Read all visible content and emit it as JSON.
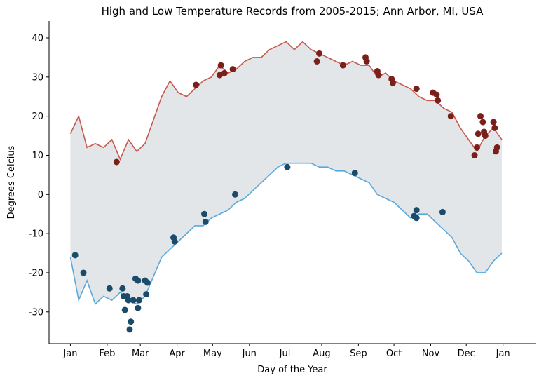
{
  "chart_data": {
    "type": "line",
    "title": "High and Low Temperature Records from 2005-2015; Ann Arbor, MI, USA",
    "x_label": "Day of the Year",
    "y_label": "Degrees Celcius",
    "xlim": [
      -17,
      394
    ],
    "ylim": [
      -38.1,
      44.3
    ],
    "xticks": [
      {
        "value": 1,
        "label": "Jan"
      },
      {
        "value": 32,
        "label": "Feb"
      },
      {
        "value": 60,
        "label": "Mar"
      },
      {
        "value": 91,
        "label": "Apr"
      },
      {
        "value": 121,
        "label": "May"
      },
      {
        "value": 152,
        "label": "Jun"
      },
      {
        "value": 182,
        "label": "Jul"
      },
      {
        "value": 213,
        "label": "Aug"
      },
      {
        "value": 244,
        "label": "Sep"
      },
      {
        "value": 274,
        "label": "Oct"
      },
      {
        "value": 305,
        "label": "Nov"
      },
      {
        "value": 335,
        "label": "Dec"
      },
      {
        "value": 366,
        "label": "Jan"
      }
    ],
    "yticks": [
      -30,
      -20,
      -10,
      0,
      10,
      20,
      30,
      40
    ],
    "fill_between": {
      "series": [
        0,
        1
      ],
      "color": "#e3e6e8"
    },
    "series": [
      {
        "style": "line",
        "color": "#c8584d",
        "x": [
          1,
          8,
          15,
          22,
          29,
          36,
          43,
          50,
          57,
          64,
          71,
          78,
          85,
          92,
          99,
          106,
          113,
          120,
          127,
          134,
          141,
          148,
          155,
          162,
          169,
          176,
          183,
          190,
          197,
          204,
          211,
          218,
          225,
          232,
          239,
          246,
          253,
          260,
          267,
          274,
          281,
          288,
          295,
          302,
          309,
          316,
          323,
          330,
          337,
          344,
          351,
          358,
          365
        ],
        "values": [
          15.5,
          20,
          12,
          13,
          12,
          14,
          9,
          14,
          11,
          13,
          19,
          25,
          29,
          26,
          25,
          27,
          29,
          30,
          33,
          31,
          32,
          34,
          35,
          35,
          37,
          38,
          39,
          37,
          39,
          37,
          36,
          35,
          34,
          33,
          34,
          33,
          33,
          30,
          31,
          29,
          28,
          27,
          25,
          24,
          24,
          22,
          21,
          17,
          14,
          11,
          15,
          17,
          14
        ]
      },
      {
        "style": "line",
        "color": "#5aa9dd",
        "x": [
          1,
          8,
          15,
          22,
          29,
          36,
          43,
          50,
          57,
          64,
          71,
          78,
          85,
          92,
          99,
          106,
          113,
          120,
          127,
          134,
          141,
          148,
          155,
          162,
          169,
          176,
          183,
          190,
          197,
          204,
          211,
          218,
          225,
          232,
          239,
          246,
          253,
          260,
          267,
          274,
          281,
          288,
          295,
          302,
          309,
          316,
          323,
          330,
          337,
          344,
          351,
          358,
          365
        ],
        "values": [
          -16,
          -27,
          -22,
          -28,
          -26,
          -27,
          -25,
          -27,
          -28,
          -26,
          -21,
          -16,
          -14,
          -12,
          -10,
          -8,
          -8,
          -6,
          -5,
          -4,
          -2,
          -1,
          1,
          3,
          5,
          7,
          8,
          8,
          8,
          8,
          7,
          7,
          6,
          6,
          5,
          4,
          3,
          0,
          -1,
          -2,
          -4,
          -6,
          -5,
          -5,
          -7,
          -9,
          -11,
          -15,
          -17,
          -20,
          -20,
          -17,
          -15
        ]
      },
      {
        "style": "scatter",
        "color": "#7a1f1a",
        "x": [
          40,
          107,
          128,
          127,
          131,
          138,
          209,
          211,
          231,
          250,
          251,
          260,
          261,
          272,
          273,
          293,
          307,
          310,
          311,
          322,
          342,
          344,
          345,
          347,
          349,
          350,
          351,
          358,
          359,
          360,
          361
        ],
        "values": [
          8.3,
          28,
          33,
          30.5,
          31,
          32,
          34,
          36,
          33,
          35,
          34,
          31.5,
          30.5,
          29.5,
          28.5,
          27,
          26,
          25.5,
          24,
          20,
          10,
          12,
          15.5,
          20,
          18.5,
          16,
          15,
          18.5,
          17,
          11,
          12
        ]
      },
      {
        "style": "scatter",
        "color": "#1b4b6b",
        "x": [
          5,
          12,
          34,
          45,
          46,
          47,
          49,
          50,
          51,
          52,
          54,
          56,
          58,
          58,
          59,
          64,
          65,
          66,
          88,
          89,
          114,
          115,
          140,
          184,
          241,
          291,
          293,
          293,
          315
        ],
        "values": [
          -15.5,
          -20,
          -24,
          -24,
          -26,
          -29.5,
          -26,
          -27,
          -34.5,
          -32.5,
          -27,
          -21.5,
          -22,
          -29,
          -27,
          -22,
          -25.5,
          -22.5,
          -11,
          -12,
          -5,
          -7,
          0,
          7,
          5.5,
          -5.5,
          -4,
          -6,
          -4.5
        ]
      }
    ]
  }
}
